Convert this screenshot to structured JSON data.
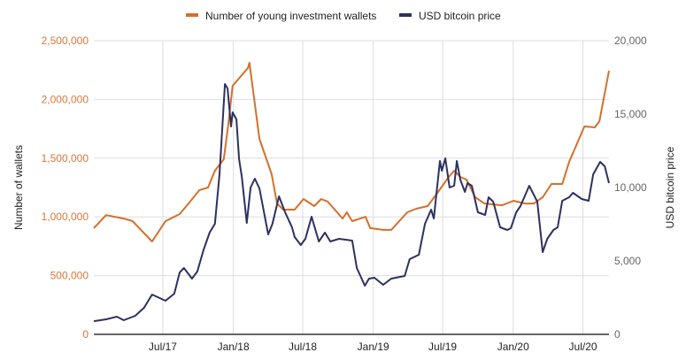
{
  "chart_data": {
    "type": "line",
    "title": "",
    "xlabel": "",
    "ylabel": "Number of wallets",
    "y2label": "USD bitcoin price",
    "xlim": [
      "2017-01-02",
      "2020-09-07"
    ],
    "ylim": [
      0,
      2500000
    ],
    "y2lim": [
      0,
      20000
    ],
    "grid": true,
    "legend_position": "top",
    "x_ticks": [
      {
        "date": "2017-07-01",
        "label": "Jul/17"
      },
      {
        "date": "2018-01-01",
        "label": "Jan/18"
      },
      {
        "date": "2018-07-01",
        "label": "Jul/18"
      },
      {
        "date": "2019-01-01",
        "label": "Jan/19"
      },
      {
        "date": "2019-07-01",
        "label": "Jul/19"
      },
      {
        "date": "2020-01-01",
        "label": "Jan/20"
      },
      {
        "date": "2020-07-01",
        "label": "Jul/20"
      }
    ],
    "y_ticks": [
      {
        "value": 0,
        "label": "0"
      },
      {
        "value": 500000,
        "label": "500,000"
      },
      {
        "value": 1000000,
        "label": "1,000,000"
      },
      {
        "value": 1500000,
        "label": "1,500,000"
      },
      {
        "value": 2000000,
        "label": "2,000,000"
      },
      {
        "value": 2500000,
        "label": "2,500,000"
      }
    ],
    "y2_ticks": [
      {
        "value": 0,
        "label": "0"
      },
      {
        "value": 5000,
        "label": "5,000"
      },
      {
        "value": 10000,
        "label": "10,000"
      },
      {
        "value": 15000,
        "label": "15,000"
      },
      {
        "value": 20000,
        "label": "20,000"
      }
    ],
    "series": [
      {
        "name": "Number of young investment wallets",
        "axis": "left",
        "color": "#d4702c",
        "points": [
          [
            "2017-01-02",
            904000
          ],
          [
            "2017-02-03",
            1015000
          ],
          [
            "2017-03-21",
            986000
          ],
          [
            "2017-04-13",
            964000
          ],
          [
            "2017-06-03",
            791000
          ],
          [
            "2017-07-08",
            964000
          ],
          [
            "2017-08-14",
            1024000
          ],
          [
            "2017-09-06",
            1114000
          ],
          [
            "2017-10-04",
            1227000
          ],
          [
            "2017-10-27",
            1250000
          ],
          [
            "2017-11-14",
            1393000
          ],
          [
            "2017-12-07",
            1491000
          ],
          [
            "2017-12-19",
            1792000
          ],
          [
            "2017-12-30",
            2116000
          ],
          [
            "2018-02-08",
            2267000
          ],
          [
            "2018-02-12",
            2312000
          ],
          [
            "2018-03-10",
            1664000
          ],
          [
            "2018-04-11",
            1363000
          ],
          [
            "2018-04-25",
            1114000
          ],
          [
            "2018-05-11",
            1062000
          ],
          [
            "2018-06-10",
            1062000
          ],
          [
            "2018-07-03",
            1152000
          ],
          [
            "2018-07-31",
            1092000
          ],
          [
            "2018-08-18",
            1152000
          ],
          [
            "2018-09-04",
            1130000
          ],
          [
            "2018-10-13",
            986000
          ],
          [
            "2018-10-24",
            1039000
          ],
          [
            "2018-11-07",
            964000
          ],
          [
            "2018-12-12",
            1001000
          ],
          [
            "2018-12-24",
            904000
          ],
          [
            "2019-01-27",
            889000
          ],
          [
            "2019-02-17",
            889000
          ],
          [
            "2019-03-31",
            1039000
          ],
          [
            "2019-04-23",
            1069000
          ],
          [
            "2019-05-23",
            1092000
          ],
          [
            "2019-06-19",
            1212000
          ],
          [
            "2019-07-17",
            1340000
          ],
          [
            "2019-07-31",
            1393000
          ],
          [
            "2019-08-16",
            1340000
          ],
          [
            "2019-09-01",
            1318000
          ],
          [
            "2019-09-24",
            1167000
          ],
          [
            "2019-10-18",
            1114000
          ],
          [
            "2019-12-03",
            1099000
          ],
          [
            "2020-01-02",
            1137000
          ],
          [
            "2020-02-01",
            1114000
          ],
          [
            "2020-02-24",
            1114000
          ],
          [
            "2020-03-18",
            1167000
          ],
          [
            "2020-04-10",
            1280000
          ],
          [
            "2020-05-08",
            1280000
          ],
          [
            "2020-05-26",
            1468000
          ],
          [
            "2020-07-05",
            1770000
          ],
          [
            "2020-08-01",
            1762000
          ],
          [
            "2020-08-13",
            1815000
          ],
          [
            "2020-09-07",
            2244000
          ]
        ]
      },
      {
        "name": "USD bitcoin price",
        "axis": "right",
        "color": "#2d3160",
        "points": [
          [
            "2017-01-02",
            900
          ],
          [
            "2017-02-03",
            1024
          ],
          [
            "2017-03-03",
            1205
          ],
          [
            "2017-03-21",
            964
          ],
          [
            "2017-04-20",
            1265
          ],
          [
            "2017-05-13",
            1807
          ],
          [
            "2017-06-03",
            2711
          ],
          [
            "2017-07-08",
            2289
          ],
          [
            "2017-07-31",
            2771
          ],
          [
            "2017-08-14",
            4217
          ],
          [
            "2017-08-25",
            4518
          ],
          [
            "2017-09-15",
            3795
          ],
          [
            "2017-09-29",
            4277
          ],
          [
            "2017-10-15",
            5723
          ],
          [
            "2017-10-31",
            6928
          ],
          [
            "2017-11-14",
            7530
          ],
          [
            "2017-11-26",
            10904
          ],
          [
            "2017-12-10",
            17048
          ],
          [
            "2017-12-17",
            16747
          ],
          [
            "2017-12-26",
            14156
          ],
          [
            "2017-12-30",
            15120
          ],
          [
            "2018-01-09",
            14638
          ],
          [
            "2018-01-16",
            11928
          ],
          [
            "2018-01-23",
            10723
          ],
          [
            "2018-02-05",
            7590
          ],
          [
            "2018-02-15",
            10000
          ],
          [
            "2018-02-26",
            10602
          ],
          [
            "2018-03-10",
            9940
          ],
          [
            "2018-04-02",
            6807
          ],
          [
            "2018-04-13",
            7530
          ],
          [
            "2018-04-30",
            9398
          ],
          [
            "2018-05-16",
            8313
          ],
          [
            "2018-06-03",
            7289
          ],
          [
            "2018-06-10",
            6626
          ],
          [
            "2018-06-26",
            6084
          ],
          [
            "2018-07-08",
            6506
          ],
          [
            "2018-07-24",
            8012
          ],
          [
            "2018-08-12",
            6325
          ],
          [
            "2018-08-28",
            6928
          ],
          [
            "2018-09-11",
            6325
          ],
          [
            "2018-10-04",
            6506
          ],
          [
            "2018-11-07",
            6385
          ],
          [
            "2018-11-19",
            4518
          ],
          [
            "2018-12-10",
            3313
          ],
          [
            "2018-12-21",
            3795
          ],
          [
            "2019-01-04",
            3855
          ],
          [
            "2019-01-27",
            3373
          ],
          [
            "2019-02-17",
            3795
          ],
          [
            "2019-03-24",
            3976
          ],
          [
            "2019-04-06",
            5120
          ],
          [
            "2019-04-30",
            5422
          ],
          [
            "2019-05-16",
            7530
          ],
          [
            "2019-06-01",
            8494
          ],
          [
            "2019-06-08",
            7891
          ],
          [
            "2019-06-24",
            11807
          ],
          [
            "2019-06-29",
            11145
          ],
          [
            "2019-07-08",
            11988
          ],
          [
            "2019-07-19",
            10000
          ],
          [
            "2019-07-31",
            10120
          ],
          [
            "2019-08-07",
            11807
          ],
          [
            "2019-08-16",
            10542
          ],
          [
            "2019-08-28",
            9699
          ],
          [
            "2019-09-04",
            10301
          ],
          [
            "2019-09-15",
            10120
          ],
          [
            "2019-10-01",
            8313
          ],
          [
            "2019-10-20",
            8132
          ],
          [
            "2019-10-29",
            9337
          ],
          [
            "2019-11-10",
            9036
          ],
          [
            "2019-11-28",
            7289
          ],
          [
            "2019-12-17",
            7108
          ],
          [
            "2019-12-26",
            7229
          ],
          [
            "2020-01-09",
            8313
          ],
          [
            "2020-01-20",
            8735
          ],
          [
            "2020-02-12",
            10120
          ],
          [
            "2020-03-04",
            9036
          ],
          [
            "2020-03-18",
            5602
          ],
          [
            "2020-03-30",
            6506
          ],
          [
            "2020-04-15",
            7108
          ],
          [
            "2020-04-26",
            7289
          ],
          [
            "2020-05-08",
            9096
          ],
          [
            "2020-05-26",
            9337
          ],
          [
            "2020-06-05",
            9638
          ],
          [
            "2020-06-28",
            9217
          ],
          [
            "2020-07-16",
            9096
          ],
          [
            "2020-07-28",
            10904
          ],
          [
            "2020-08-15",
            11747
          ],
          [
            "2020-08-27",
            11446
          ],
          [
            "2020-09-07",
            10301
          ]
        ]
      }
    ]
  },
  "colors": {
    "left_axis_text": "#d9773a",
    "right_axis_text": "#666666",
    "grid": "#dddddd",
    "axis": "#333333"
  }
}
